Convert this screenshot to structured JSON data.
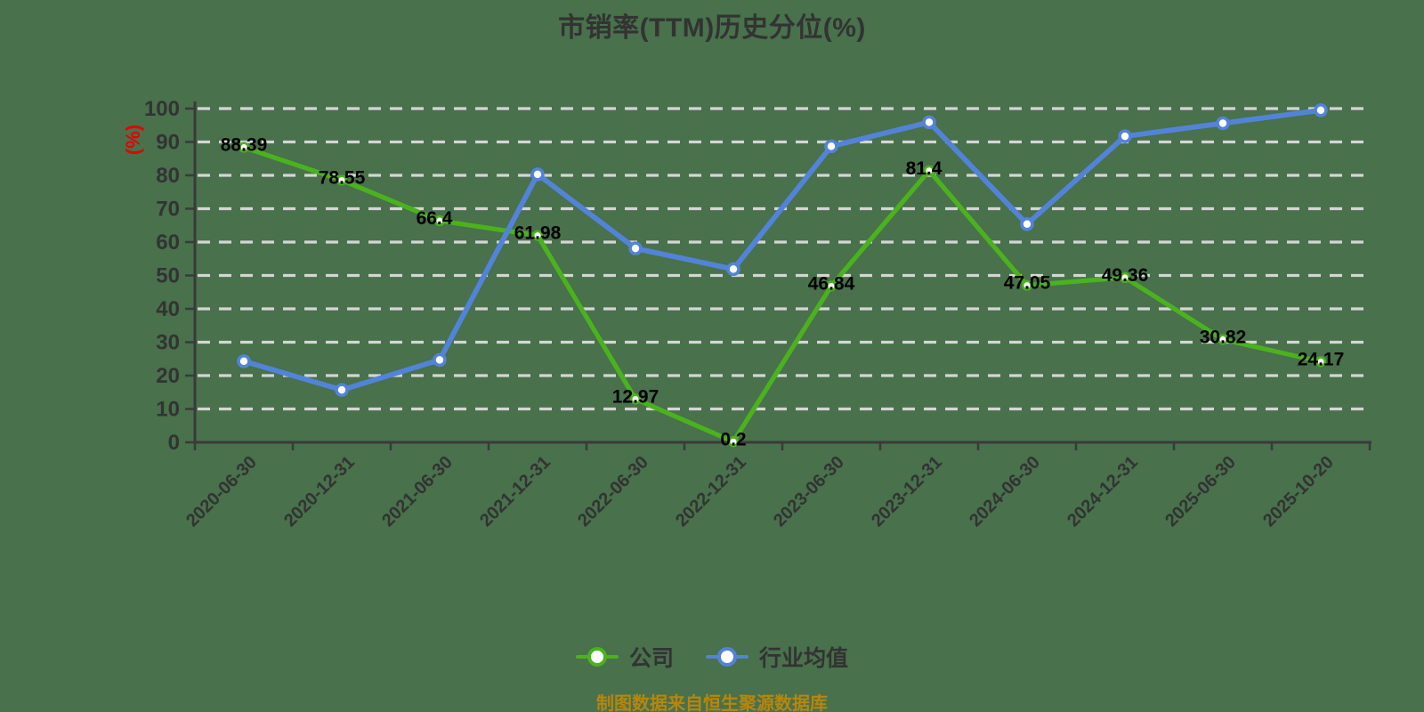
{
  "title": "市销率(TTM)历史分位(%)",
  "y_axis_name": "(%)",
  "caption": "制图数据来自恒生聚源数据库",
  "legend": {
    "items": [
      {
        "label": "公司",
        "color": "#4bb21e"
      },
      {
        "label": "行业均值",
        "color": "#5383d9"
      }
    ]
  },
  "colors": {
    "background": "#48714c",
    "title_text": "#333333",
    "axis_line": "#3a3a3a",
    "tick_text": "#333333",
    "gridline": "#d5d5d5",
    "y_axis_name_text": "#e60000",
    "data_label_text": "#000000",
    "caption_text": "#b8860b",
    "company_series": "#4bb21e",
    "industry_series": "#5383d9",
    "marker_fill": "#ffffff"
  },
  "chart_data": {
    "type": "line",
    "title": "市销率(TTM)历史分位(%)",
    "ylabel": "(%)",
    "ylim": [
      0,
      100
    ],
    "ytick_step": 10,
    "grid": "horizontal-dashed",
    "legend_position": "bottom",
    "categories": [
      "2020-06-30",
      "2020-12-31",
      "2021-06-30",
      "2021-12-31",
      "2022-06-30",
      "2022-12-31",
      "2023-06-30",
      "2023-12-31",
      "2024-06-30",
      "2024-12-31",
      "2025-06-30",
      "2025-10-20"
    ],
    "series": [
      {
        "name": "公司",
        "color": "#4bb21e",
        "values": [
          88.39,
          78.55,
          66.4,
          61.98,
          12.97,
          0.2,
          46.84,
          81.4,
          47.05,
          49.36,
          30.82,
          24.17
        ],
        "labels": [
          "88.39",
          "78.55",
          "66.4",
          "61.98",
          "12.97",
          "0.2",
          "46.84",
          "81.4",
          "47.05",
          "49.36",
          "30.82",
          "24.17"
        ],
        "show_labels": true
      },
      {
        "name": "行业均值",
        "color": "#5383d9",
        "values": [
          24.3,
          15.7,
          24.7,
          80.3,
          58.1,
          51.9,
          88.7,
          95.9,
          65.4,
          91.7,
          95.6,
          99.5
        ],
        "labels": [],
        "show_labels": false
      }
    ]
  }
}
